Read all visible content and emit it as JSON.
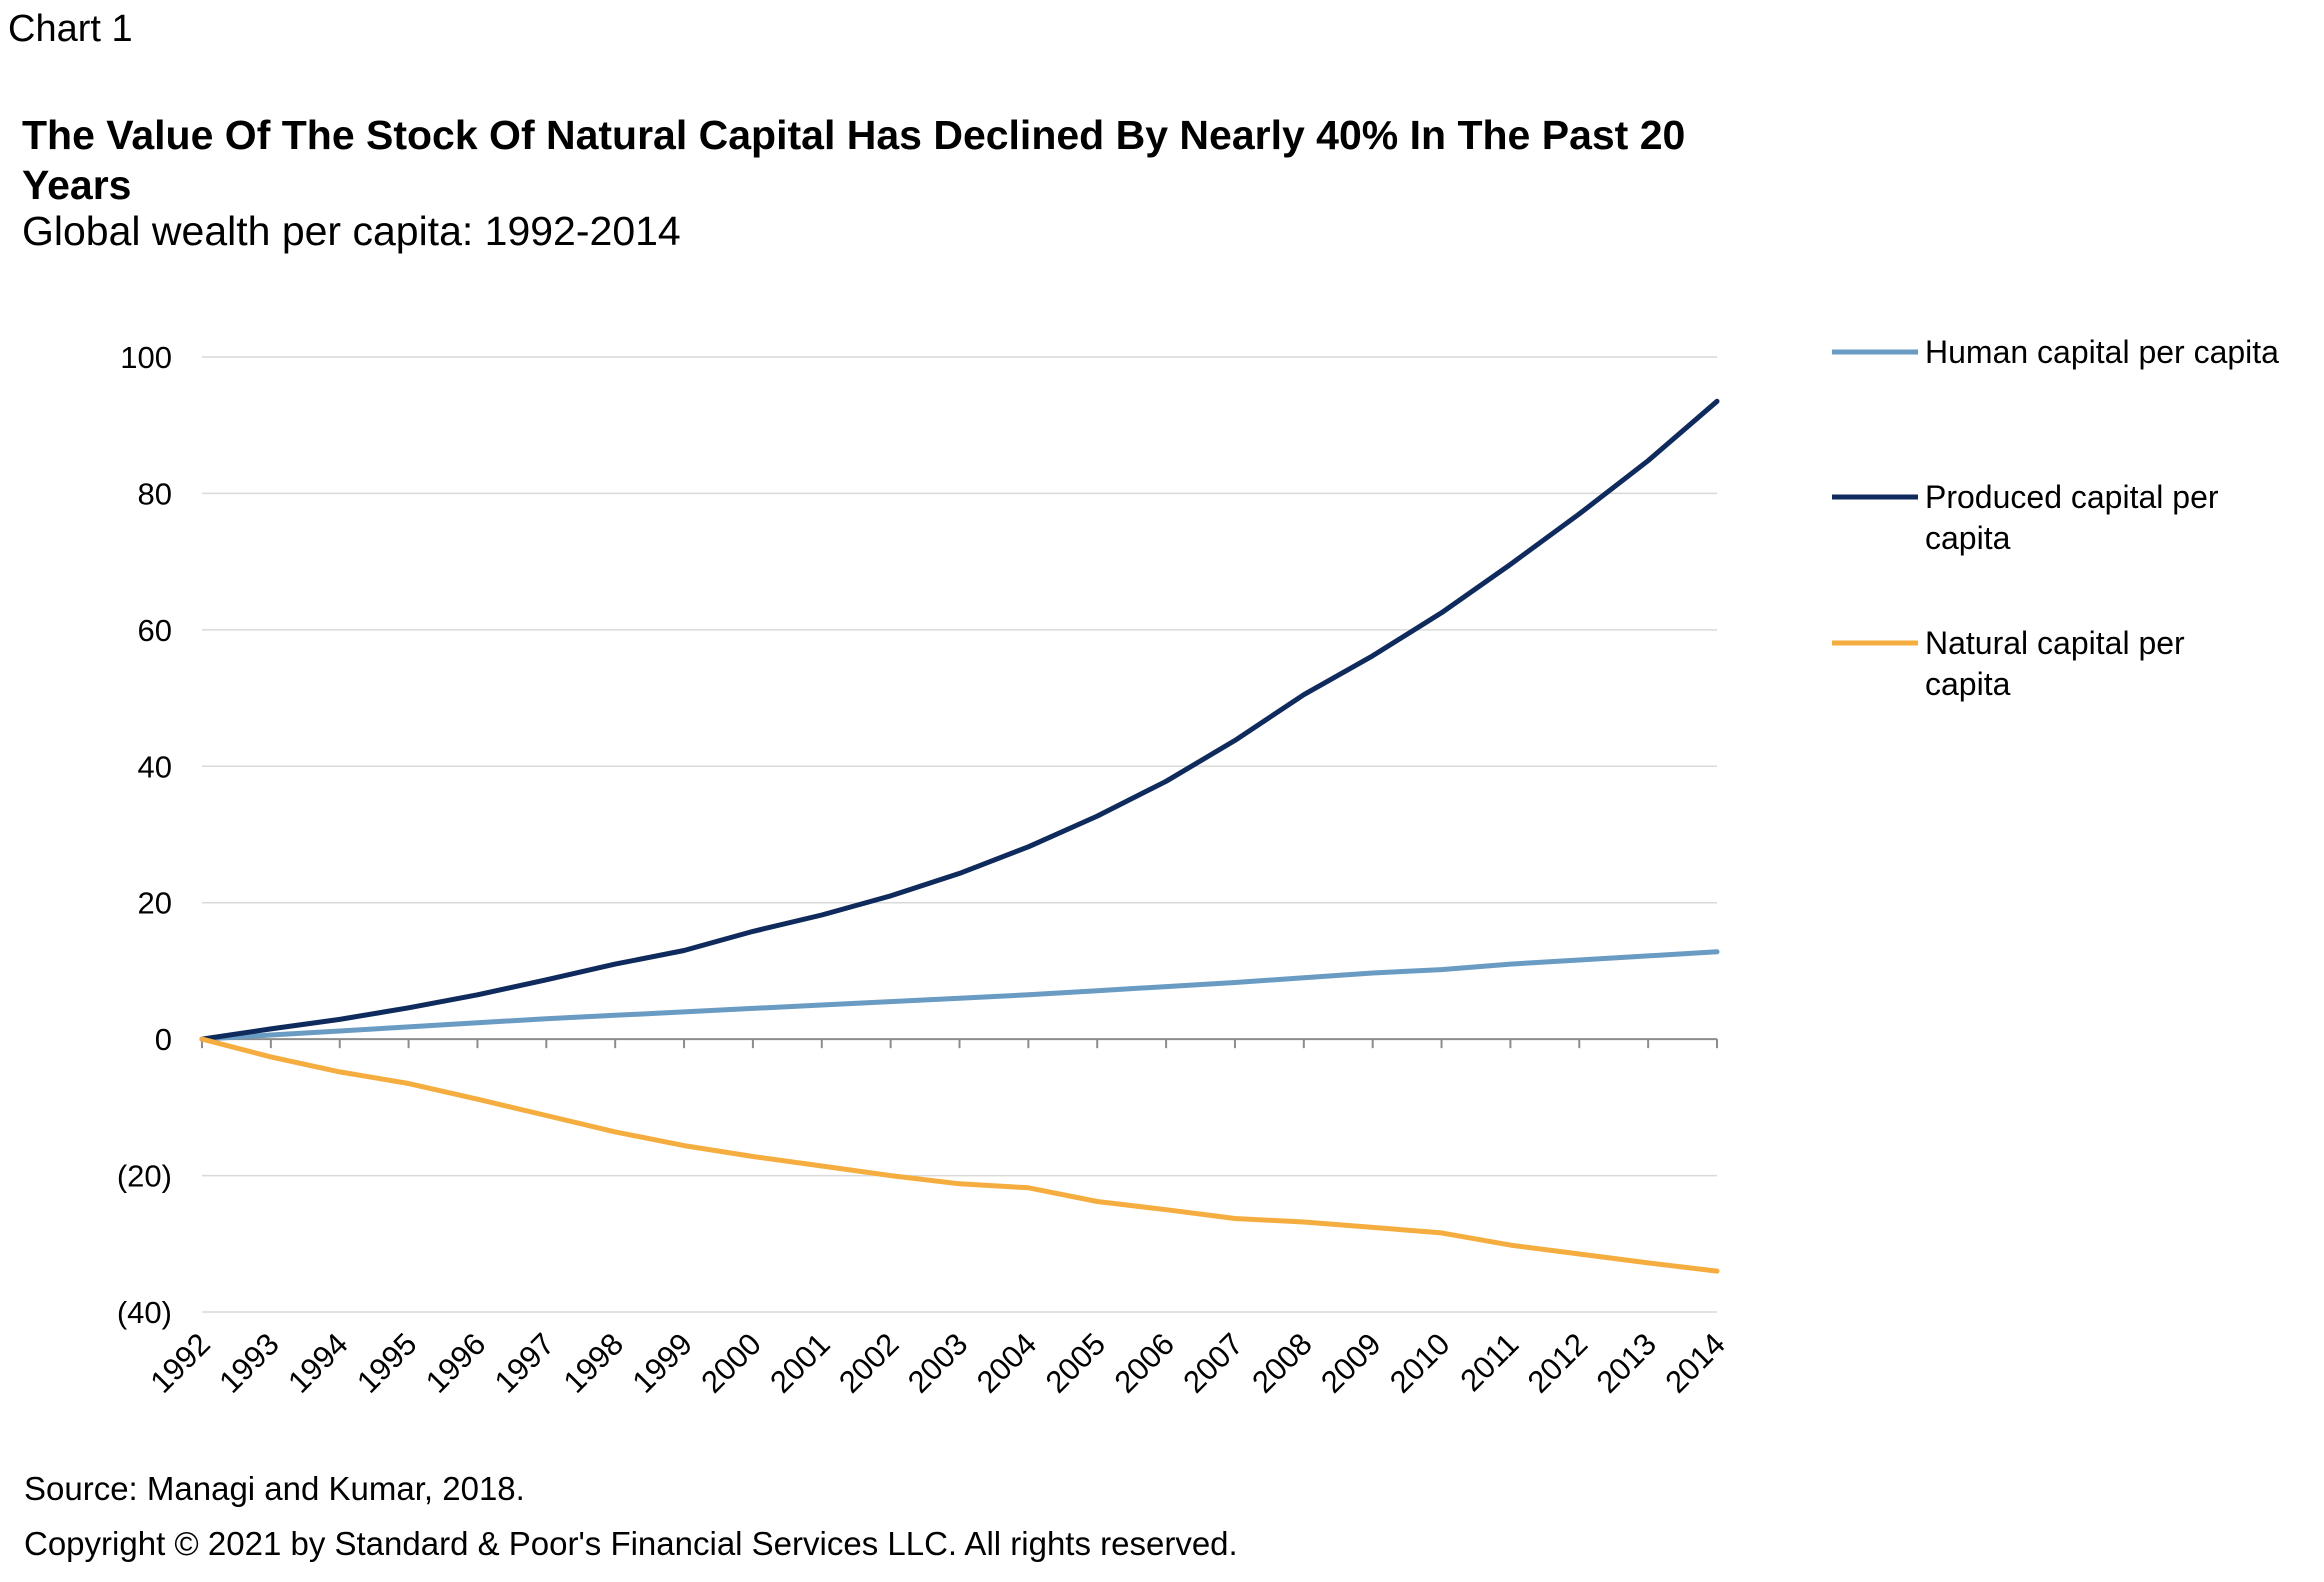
{
  "header": {
    "chart_label": "Chart 1",
    "title": "The Value Of The Stock Of Natural Capital Has Declined By Nearly 40% In The Past 20 Years",
    "subtitle": "Global wealth per capita: 1992-2014"
  },
  "footer": {
    "source": "Source: Managi and Kumar, 2018.",
    "copyright": "Copyright © 2021 by Standard & Poor's Financial Services LLC. All rights reserved."
  },
  "chart_data": {
    "type": "line",
    "title": "The Value Of The Stock Of Natural Capital Has Declined By Nearly 40% In The Past 20 Years",
    "subtitle": "Global wealth per capita: 1992-2014",
    "x": [
      "1992",
      "1993",
      "1994",
      "1995",
      "1996",
      "1997",
      "1998",
      "1999",
      "2000",
      "2001",
      "2002",
      "2003",
      "2004",
      "2005",
      "2006",
      "2007",
      "2008",
      "2009",
      "2010",
      "2011",
      "2012",
      "2013",
      "2014"
    ],
    "ylim": [
      -40,
      100
    ],
    "yticks": [
      100,
      80,
      60,
      40,
      20,
      0,
      -20,
      -40
    ],
    "ytick_labels": [
      "100",
      "80",
      "60",
      "40",
      "20",
      "0",
      "(20)",
      "(40)"
    ],
    "grid": true,
    "legend_position": "right",
    "series": [
      {
        "name": "Human capital per capita",
        "color": "#6a9bc3",
        "values": [
          0,
          0.6,
          1.2,
          1.8,
          2.4,
          3.0,
          3.5,
          4.0,
          4.5,
          5.0,
          5.5,
          6.0,
          6.5,
          7.1,
          7.7,
          8.3,
          9.0,
          9.7,
          10.2,
          11.0,
          11.6,
          12.2,
          12.8
        ]
      },
      {
        "name": "Produced capital per capita",
        "color": "#0f2a5c",
        "values": [
          0,
          1.5,
          2.9,
          4.6,
          6.5,
          8.7,
          11.0,
          13.0,
          15.8,
          18.2,
          21.0,
          24.3,
          28.2,
          32.7,
          37.8,
          43.8,
          50.5,
          56.2,
          62.5,
          69.6,
          77.0,
          84.8,
          93.5
        ]
      },
      {
        "name": "Natural capital per capita",
        "color": "#f5ad3f",
        "values": [
          0,
          -2.6,
          -4.8,
          -6.5,
          -8.8,
          -11.2,
          -13.6,
          -15.6,
          -17.2,
          -18.6,
          -20.0,
          -21.2,
          -21.8,
          -23.8,
          -25.0,
          -26.3,
          -26.8,
          -27.6,
          -28.4,
          -30.2,
          -31.5,
          -32.8,
          -34.0
        ]
      }
    ]
  }
}
